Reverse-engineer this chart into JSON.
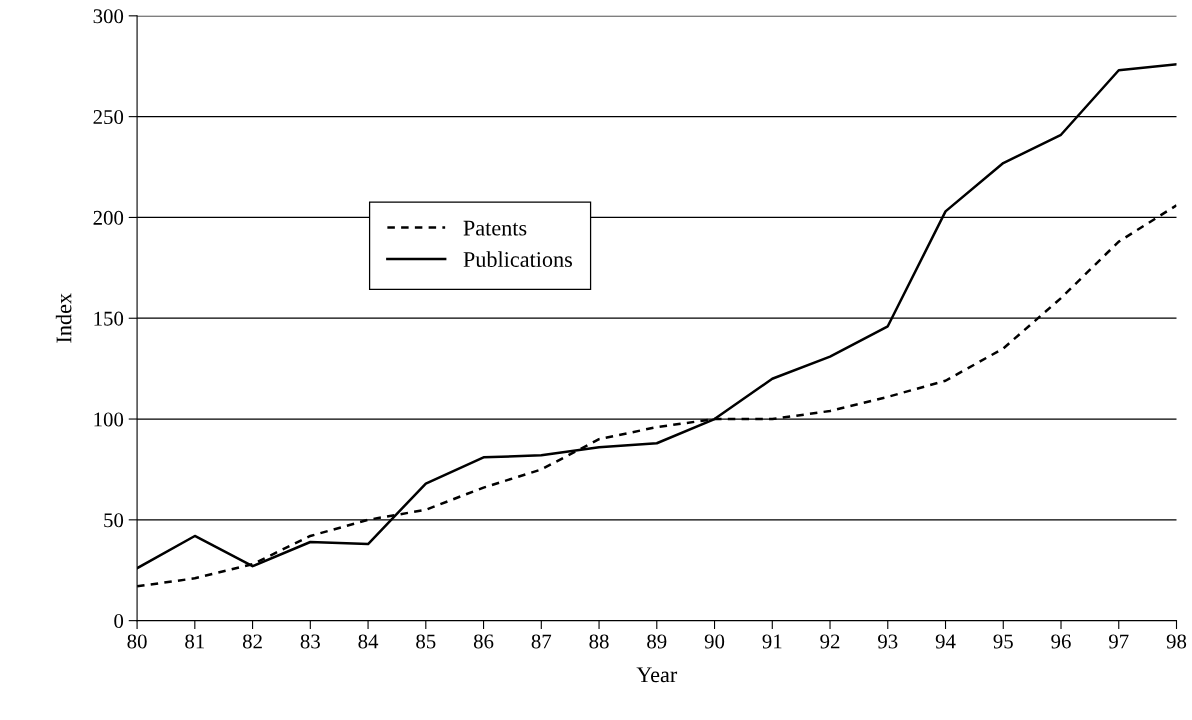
{
  "chart_data": {
    "type": "line",
    "xlabel": "Year",
    "ylabel": "Index",
    "categories": [
      "80",
      "81",
      "82",
      "83",
      "84",
      "85",
      "86",
      "87",
      "88",
      "89",
      "90",
      "91",
      "92",
      "93",
      "94",
      "95",
      "96",
      "97",
      "98"
    ],
    "series": [
      {
        "name": "Patents",
        "color": "#000000",
        "line_style": "dashed",
        "values": [
          17,
          21,
          28,
          42,
          50,
          55,
          66,
          75,
          90,
          96,
          100,
          100,
          104,
          111,
          119,
          135,
          160,
          188,
          206
        ]
      },
      {
        "name": "Publications",
        "color": "#000000",
        "line_style": "solid",
        "values": [
          26,
          42,
          27,
          39,
          38,
          68,
          81,
          82,
          86,
          88,
          100,
          120,
          131,
          146,
          203,
          227,
          241,
          273,
          276
        ]
      }
    ],
    "ylim": [
      0,
      300
    ],
    "yticks": [
      0,
      50,
      100,
      150,
      200,
      250,
      300
    ],
    "grid": "y",
    "legend": "center",
    "marker": "none"
  }
}
